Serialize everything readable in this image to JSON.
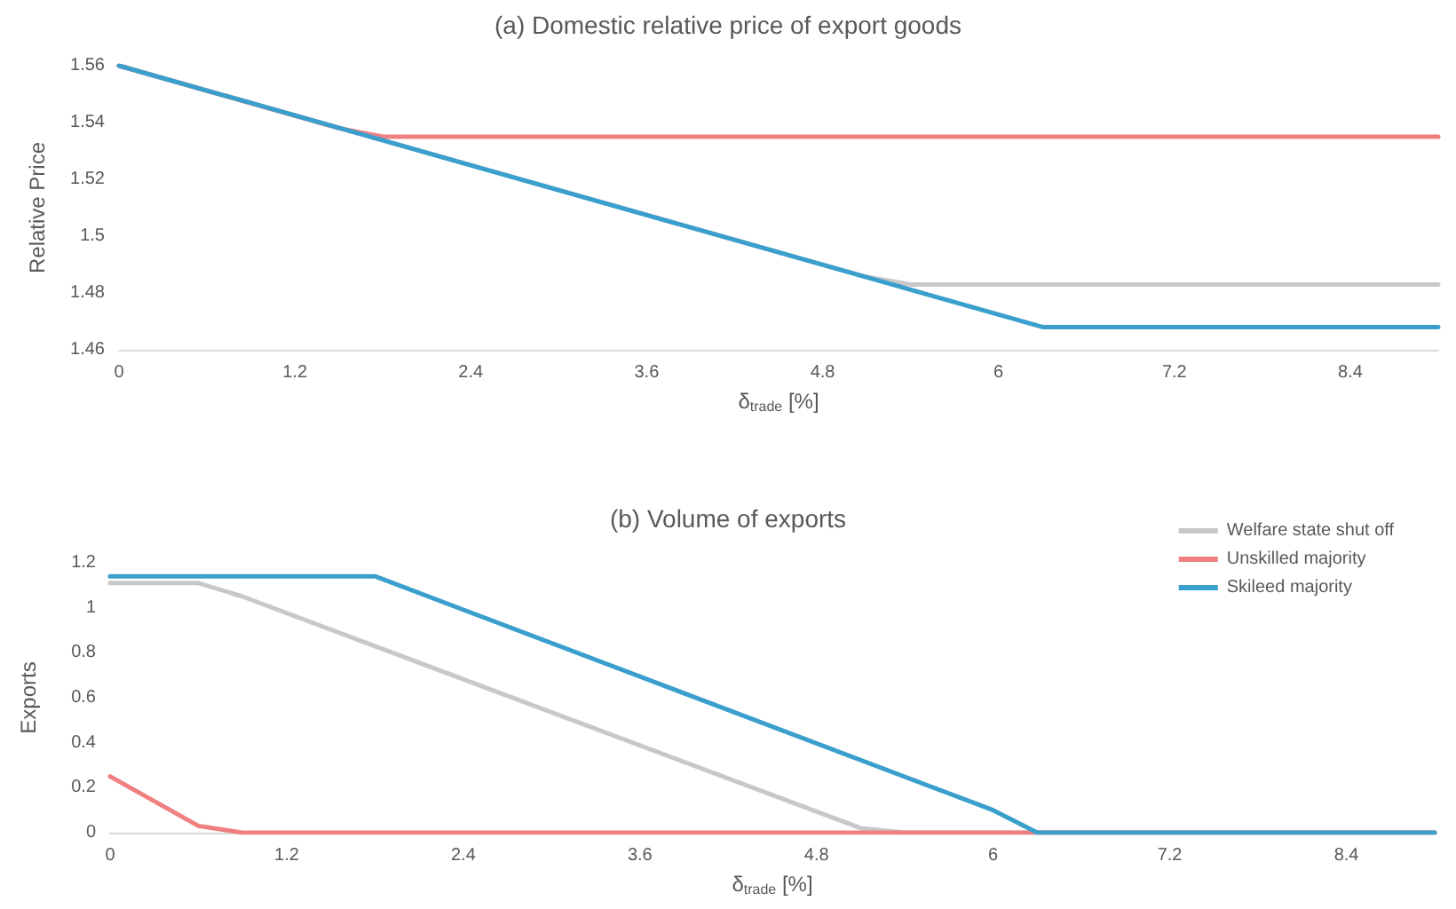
{
  "chart_data": [
    {
      "type": "line",
      "title": "(a) Domestic relative price of export goods",
      "xlabel": "δ$_{trade}$ [%]",
      "ylabel": "Relative Price",
      "xlim": [
        0,
        9
      ],
      "xticks": [
        0,
        1.2,
        2.4,
        3.6,
        4.8,
        6,
        7.2,
        8.4
      ],
      "ylim": [
        1.46,
        1.56
      ],
      "yticks": [
        1.46,
        1.48,
        1.5,
        1.52,
        1.54,
        1.56
      ],
      "marker": "none",
      "line_style": "solid",
      "series": [
        {
          "color": "#c8c8c8",
          "x": [
            0,
            5.1,
            5.4,
            9
          ],
          "values": [
            1.56,
            1.4856,
            1.483,
            1.483
          ]
        },
        {
          "color": "#f08080",
          "x": [
            0,
            1.5,
            1.8,
            9
          ],
          "values": [
            1.56,
            1.538,
            1.535,
            1.535
          ]
        },
        {
          "color": "#3a9fcc",
          "x": [
            0,
            6.3,
            9
          ],
          "values": [
            1.56,
            1.468,
            1.468
          ]
        }
      ]
    },
    {
      "type": "line",
      "title": "(b) Volume of exports",
      "xlabel": "δ$_{trade}$ [%]",
      "ylabel": "Exports",
      "xlim": [
        0,
        9
      ],
      "xticks": [
        0,
        1.2,
        2.4,
        3.6,
        4.8,
        6,
        7.2,
        8.4
      ],
      "ylim": [
        0,
        1.2
      ],
      "yticks": [
        0,
        0.2,
        0.4,
        0.6,
        0.8,
        1,
        1.2
      ],
      "marker": "none",
      "line_style": "solid",
      "legend": "top right",
      "series": [
        {
          "name": "Welfare state shut off",
          "color": "#c8c8c8",
          "x": [
            0,
            0.6,
            0.9,
            5.1,
            5.4,
            9
          ],
          "values": [
            1.11,
            1.11,
            1.05,
            0.02,
            0,
            0
          ]
        },
        {
          "name": "Unskilled majority",
          "color": "#f08080",
          "x": [
            0,
            0.6,
            0.9,
            9
          ],
          "values": [
            0.25,
            0.03,
            0,
            0
          ]
        },
        {
          "name": "Skileed majority",
          "color": "#3a9fcc",
          "x": [
            0,
            1.8,
            6,
            6.3,
            9
          ],
          "values": [
            1.14,
            1.14,
            0.1,
            0,
            0
          ]
        }
      ]
    }
  ]
}
